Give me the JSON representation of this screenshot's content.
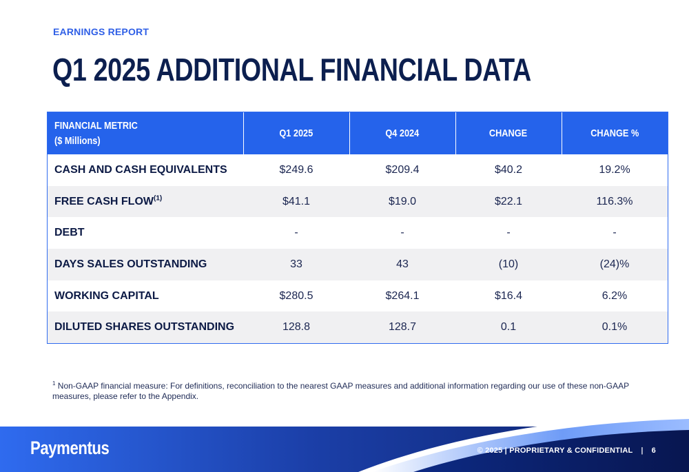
{
  "header": {
    "eyebrow": "EARNINGS REPORT",
    "title": "Q1 2025 ADDITIONAL FINANCIAL DATA"
  },
  "table": {
    "columns": {
      "metric_line1": "FINANCIAL METRIC",
      "metric_line2": "($ Millions)",
      "q1_2025": "Q1 2025",
      "q4_2024": "Q4 2024",
      "change": "CHANGE",
      "change_pct": "CHANGE %"
    },
    "rows": [
      {
        "metric": "CASH AND CASH EQUIVALENTS",
        "sup": "",
        "q1": "$249.6",
        "q4": "$209.4",
        "change": "$40.2",
        "pct": "19.2%"
      },
      {
        "metric": "FREE CASH FLOW",
        "sup": "(1)",
        "q1": "$41.1",
        "q4": "$19.0",
        "change": "$22.1",
        "pct": "116.3%"
      },
      {
        "metric": "DEBT",
        "sup": "",
        "q1": "-",
        "q4": "-",
        "change": "-",
        "pct": "-"
      },
      {
        "metric": "DAYS SALES OUTSTANDING",
        "sup": "",
        "q1": "33",
        "q4": "43",
        "change": "(10)",
        "pct": "(24)%"
      },
      {
        "metric": "WORKING CAPITAL",
        "sup": "",
        "q1": "$280.5",
        "q4": "$264.1",
        "change": "$16.4",
        "pct": "6.2%"
      },
      {
        "metric": "DILUTED SHARES OUTSTANDING",
        "sup": "",
        "q1": "128.8",
        "q4": "128.7",
        "change": "0.1",
        "pct": "0.1%"
      }
    ]
  },
  "footnote": {
    "marker": "1",
    "text": "Non-GAAP financial measure: For definitions, reconciliation to the nearest GAAP measures and additional information regarding our use of these non-GAAP measures, please refer to the Appendix."
  },
  "footer": {
    "brand": "Paymentus",
    "copyright": "© 2025",
    "divider": "|",
    "confidential": "PROPRIETARY & CONFIDENTIAL",
    "page_number": "6"
  },
  "colors": {
    "accent": "#2563eb",
    "navy": "#0c1f4f",
    "footer_dark": "#0a1c5c",
    "row_alt": "#f0f0f2"
  }
}
